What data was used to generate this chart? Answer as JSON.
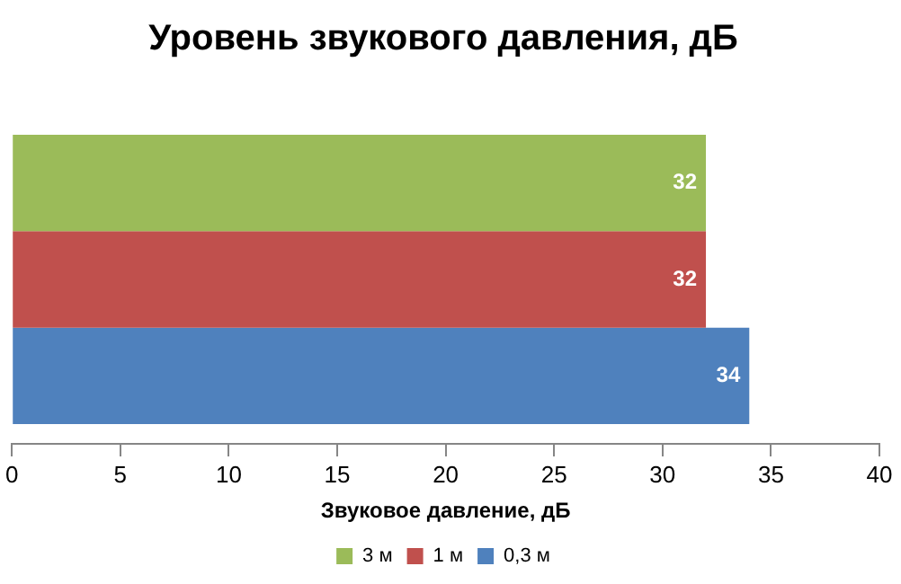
{
  "chart_data": {
    "type": "bar",
    "orientation": "horizontal",
    "title": "Уровень звукового давления, дБ",
    "xlabel": "Звуковое давление, дБ",
    "categories": [
      null
    ],
    "series": [
      {
        "name": "3 м",
        "color": "#9bbb59",
        "values": [
          32
        ]
      },
      {
        "name": "1 м",
        "color": "#c0504d",
        "values": [
          32
        ]
      },
      {
        "name": "0,3 м",
        "color": "#4f81bd",
        "values": [
          34
        ]
      }
    ],
    "xlim": [
      0,
      40
    ],
    "xticks": [
      0,
      5,
      10,
      15,
      20,
      25,
      30,
      35,
      40
    ],
    "grid": false,
    "legend": "bottom",
    "data_labels": true
  }
}
